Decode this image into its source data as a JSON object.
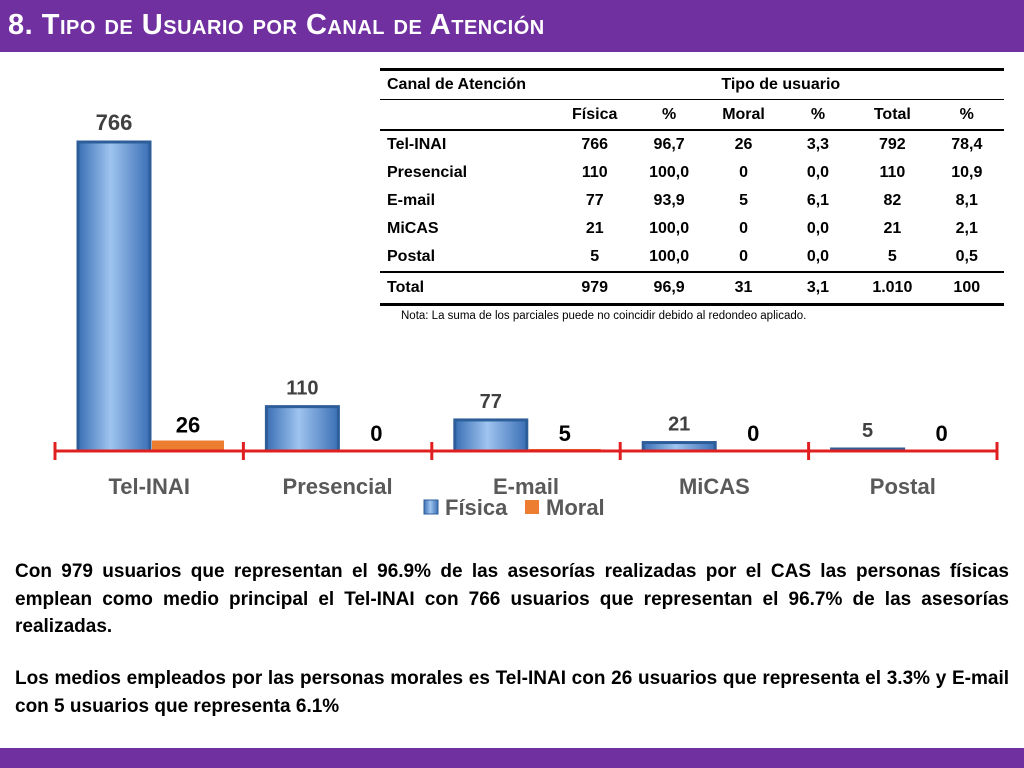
{
  "slide": {
    "title": "8. Tipo de Usuario por Canal de Atención",
    "colors": {
      "title_bar": "#7030a0",
      "fisica": "#4f81bd",
      "moral": "#ed7d31",
      "axis": "#e02020"
    }
  },
  "chart_data": {
    "type": "bar",
    "categories": [
      "Tel-INAI",
      "Presencial",
      "E-mail",
      "MiCAS",
      "Postal"
    ],
    "series": [
      {
        "name": "Física",
        "values": [
          766,
          110,
          77,
          21,
          5
        ]
      },
      {
        "name": "Moral",
        "values": [
          26,
          0,
          5,
          0,
          0
        ]
      }
    ],
    "ylim": [
      0,
      766
    ],
    "legend": "bottom",
    "grid": false
  },
  "table": {
    "headers": {
      "channel": "Canal de Atención",
      "group": "Tipo de usuario",
      "cols": [
        "Física",
        "%",
        "Moral",
        "%",
        "Total",
        "%"
      ]
    },
    "rows": [
      {
        "label": "Tel-INAI",
        "cells": [
          "766",
          "96,7",
          "26",
          "3,3",
          "792",
          "78,4"
        ]
      },
      {
        "label": "Presencial",
        "cells": [
          "110",
          "100,0",
          "0",
          "0,0",
          "110",
          "10,9"
        ]
      },
      {
        "label": "E-mail",
        "cells": [
          "77",
          "93,9",
          "5",
          "6,1",
          "82",
          "8,1"
        ]
      },
      {
        "label": "MiCAS",
        "cells": [
          "21",
          "100,0",
          "0",
          "0,0",
          "21",
          "2,1"
        ]
      },
      {
        "label": "Postal",
        "cells": [
          "5",
          "100,0",
          "0",
          "0,0",
          "5",
          "0,5"
        ]
      }
    ],
    "total": {
      "label": "Total",
      "cells": [
        "979",
        "96,9",
        "31",
        "3,1",
        "1.010",
        "100"
      ]
    },
    "note": "Nota: La suma de los parciales puede no coincidir debido al redondeo aplicado."
  },
  "text": {
    "p1": "Con 979 usuarios que representan el 96.9% de las asesorías realizadas por el CAS las personas físicas emplean como medio principal el Tel-INAI con 766 usuarios que representan el 96.7% de las asesorías realizadas.",
    "p2": "Los medios empleados por las personas morales es Tel-INAI con 26 usuarios que representa el 3.3% y E-mail con 5 usuarios que representa 6.1%"
  }
}
